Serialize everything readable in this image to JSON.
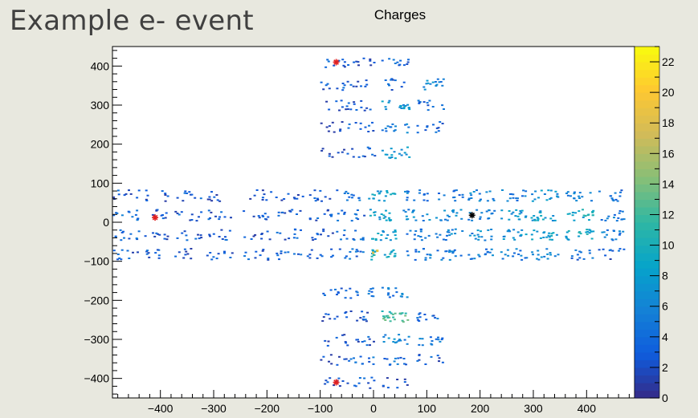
{
  "slide": {
    "title": "Example e- event"
  },
  "chart_data": {
    "type": "heatmap",
    "title": "Charges",
    "xlabel": "",
    "ylabel": "",
    "xlim": [
      -490,
      490
    ],
    "ylim": [
      -450,
      450
    ],
    "x_ticks": [
      -400,
      -300,
      -200,
      -100,
      0,
      100,
      200,
      300,
      400
    ],
    "y_ticks": [
      -400,
      -300,
      -200,
      -100,
      0,
      100,
      200,
      300,
      400
    ],
    "colorbar": {
      "min": 0,
      "max": 23,
      "ticks": [
        0,
        2,
        4,
        6,
        8,
        10,
        12,
        14,
        16,
        18,
        20,
        22
      ]
    },
    "grid": false,
    "rows_cross_arms": [
      -80,
      -30,
      20,
      70
    ],
    "cols_cross_arms": [
      -465,
      -410,
      -350,
      -290,
      -220,
      -160,
      -100,
      -45,
      15,
      80,
      140,
      200,
      260,
      320,
      385,
      445
    ],
    "rows_vertical_arm": [
      -410,
      -350,
      -300,
      -240,
      -180,
      180,
      245,
      300,
      355,
      410
    ],
    "cols_vertical_arm": [
      -75,
      -25,
      40,
      105
    ],
    "cells": [
      {
        "x": -75,
        "y": 410,
        "v": 3
      },
      {
        "x": -25,
        "y": 410,
        "v": 2
      },
      {
        "x": 40,
        "y": 410,
        "v": 4
      },
      {
        "x": -75,
        "y": 355,
        "v": 3
      },
      {
        "x": -25,
        "y": 355,
        "v": 2
      },
      {
        "x": 40,
        "y": 355,
        "v": 3
      },
      {
        "x": 105,
        "y": 355,
        "v": 6
      },
      {
        "x": -75,
        "y": 300,
        "v": 2
      },
      {
        "x": -25,
        "y": 300,
        "v": 3
      },
      {
        "x": 40,
        "y": 300,
        "v": 7
      },
      {
        "x": 105,
        "y": 300,
        "v": 4
      },
      {
        "x": -75,
        "y": 245,
        "v": 2
      },
      {
        "x": -25,
        "y": 245,
        "v": 3
      },
      {
        "x": 40,
        "y": 245,
        "v": 5
      },
      {
        "x": 105,
        "y": 245,
        "v": 4
      },
      {
        "x": -75,
        "y": 180,
        "v": 2
      },
      {
        "x": -25,
        "y": 180,
        "v": 3
      },
      {
        "x": 40,
        "y": 180,
        "v": 7
      },
      {
        "x": -75,
        "y": -180,
        "v": 3
      },
      {
        "x": -25,
        "y": -180,
        "v": 4
      },
      {
        "x": 40,
        "y": -180,
        "v": 5
      },
      {
        "x": -75,
        "y": -240,
        "v": 3
      },
      {
        "x": -25,
        "y": -240,
        "v": 3
      },
      {
        "x": 40,
        "y": -240,
        "v": 12
      },
      {
        "x": 105,
        "y": -240,
        "v": 4
      },
      {
        "x": -75,
        "y": -300,
        "v": 2
      },
      {
        "x": -25,
        "y": -300,
        "v": 3
      },
      {
        "x": 40,
        "y": -300,
        "v": 6
      },
      {
        "x": 105,
        "y": -300,
        "v": 5
      },
      {
        "x": -75,
        "y": -350,
        "v": 2
      },
      {
        "x": -25,
        "y": -350,
        "v": 4
      },
      {
        "x": 40,
        "y": -350,
        "v": 4
      },
      {
        "x": 105,
        "y": -350,
        "v": 3
      },
      {
        "x": -75,
        "y": -410,
        "v": 2
      },
      {
        "x": -25,
        "y": -410,
        "v": 3
      },
      {
        "x": 40,
        "y": -410,
        "v": 2
      },
      {
        "x": -465,
        "y": 70,
        "v": 3
      },
      {
        "x": -410,
        "y": 70,
        "v": 2
      },
      {
        "x": -350,
        "y": 70,
        "v": 3
      },
      {
        "x": -290,
        "y": 70,
        "v": 2
      },
      {
        "x": -220,
        "y": 70,
        "v": 2
      },
      {
        "x": -160,
        "y": 70,
        "v": 2
      },
      {
        "x": -100,
        "y": 70,
        "v": 3
      },
      {
        "x": -45,
        "y": 70,
        "v": 4
      },
      {
        "x": 15,
        "y": 70,
        "v": 8
      },
      {
        "x": 80,
        "y": 70,
        "v": 5
      },
      {
        "x": 140,
        "y": 70,
        "v": 4
      },
      {
        "x": 200,
        "y": 70,
        "v": 6
      },
      {
        "x": 260,
        "y": 70,
        "v": 5
      },
      {
        "x": 320,
        "y": 70,
        "v": 7
      },
      {
        "x": 385,
        "y": 70,
        "v": 6
      },
      {
        "x": 445,
        "y": 70,
        "v": 4
      },
      {
        "x": -465,
        "y": 20,
        "v": 4
      },
      {
        "x": -410,
        "y": 20,
        "v": 3
      },
      {
        "x": -350,
        "y": 20,
        "v": 3
      },
      {
        "x": -290,
        "y": 20,
        "v": 3
      },
      {
        "x": -220,
        "y": 20,
        "v": 3
      },
      {
        "x": -160,
        "y": 20,
        "v": 3
      },
      {
        "x": -100,
        "y": 20,
        "v": 3
      },
      {
        "x": -45,
        "y": 20,
        "v": 4
      },
      {
        "x": 15,
        "y": 20,
        "v": 8
      },
      {
        "x": 80,
        "y": 20,
        "v": 6
      },
      {
        "x": 140,
        "y": 20,
        "v": 6
      },
      {
        "x": 200,
        "y": 20,
        "v": 6
      },
      {
        "x": 260,
        "y": 20,
        "v": 7
      },
      {
        "x": 320,
        "y": 20,
        "v": 8
      },
      {
        "x": 385,
        "y": 20,
        "v": 9
      },
      {
        "x": 445,
        "y": 20,
        "v": 5
      },
      {
        "x": -465,
        "y": -30,
        "v": 4
      },
      {
        "x": -410,
        "y": -30,
        "v": 3
      },
      {
        "x": -350,
        "y": -30,
        "v": 3
      },
      {
        "x": -290,
        "y": -30,
        "v": 3
      },
      {
        "x": -220,
        "y": -30,
        "v": 2
      },
      {
        "x": -160,
        "y": -30,
        "v": 3
      },
      {
        "x": -100,
        "y": -30,
        "v": 3
      },
      {
        "x": -45,
        "y": -30,
        "v": 4
      },
      {
        "x": 15,
        "y": -30,
        "v": 8
      },
      {
        "x": 80,
        "y": -30,
        "v": 5
      },
      {
        "x": 140,
        "y": -30,
        "v": 6
      },
      {
        "x": 200,
        "y": -30,
        "v": 6
      },
      {
        "x": 260,
        "y": -30,
        "v": 7
      },
      {
        "x": 320,
        "y": -30,
        "v": 8
      },
      {
        "x": 385,
        "y": -30,
        "v": 9
      },
      {
        "x": 445,
        "y": -30,
        "v": 5
      },
      {
        "x": -465,
        "y": -80,
        "v": 3
      },
      {
        "x": -410,
        "y": -80,
        "v": 3
      },
      {
        "x": -350,
        "y": -80,
        "v": 2
      },
      {
        "x": -290,
        "y": -80,
        "v": 3
      },
      {
        "x": -220,
        "y": -80,
        "v": 3
      },
      {
        "x": -160,
        "y": -80,
        "v": 3
      },
      {
        "x": -100,
        "y": -80,
        "v": 3
      },
      {
        "x": -45,
        "y": -80,
        "v": 4
      },
      {
        "x": 15,
        "y": -80,
        "v": 9
      },
      {
        "x": 80,
        "y": -80,
        "v": 5
      },
      {
        "x": 140,
        "y": -80,
        "v": 5
      },
      {
        "x": 200,
        "y": -80,
        "v": 5
      },
      {
        "x": 260,
        "y": -80,
        "v": 5
      },
      {
        "x": 320,
        "y": -80,
        "v": 6
      },
      {
        "x": 385,
        "y": -80,
        "v": 4
      },
      {
        "x": 445,
        "y": -80,
        "v": 3
      }
    ],
    "hot_cells": [
      {
        "x": -3,
        "y": -75,
        "v": 18
      },
      {
        "x": 5,
        "y": -70,
        "v": 19
      }
    ],
    "markers": [
      {
        "x": -70,
        "y": 410,
        "color": "#e02020"
      },
      {
        "x": -410,
        "y": 12,
        "color": "#e02020"
      },
      {
        "x": 185,
        "y": 18,
        "color": "#000000"
      },
      {
        "x": -70,
        "y": -410,
        "color": "#e02020"
      }
    ]
  }
}
